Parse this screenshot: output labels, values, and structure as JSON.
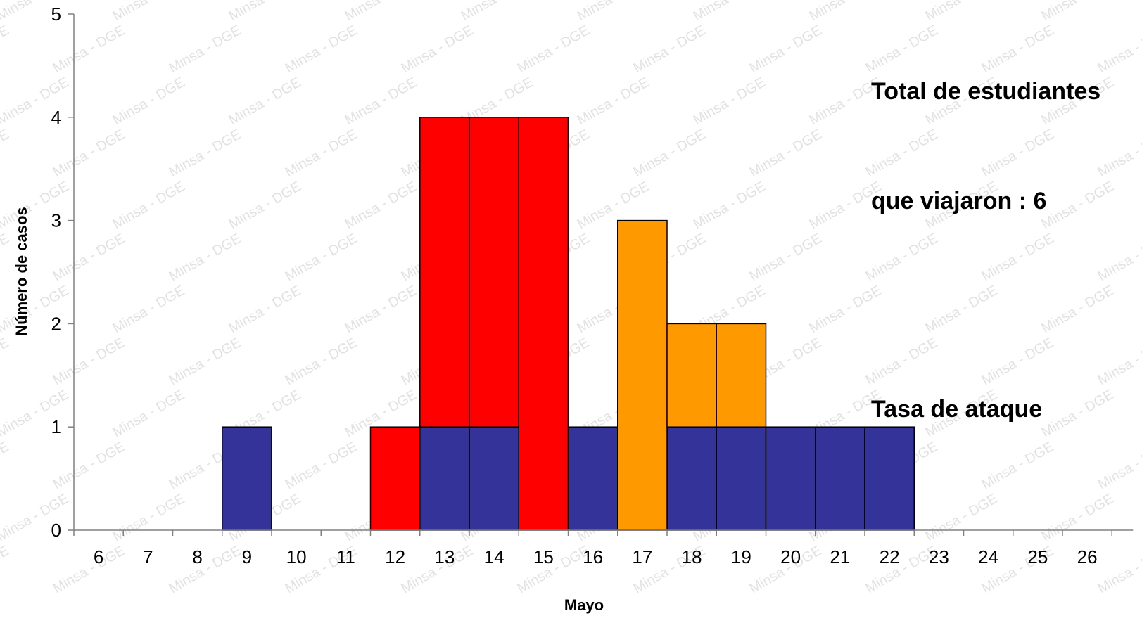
{
  "chart_data": {
    "type": "bar",
    "stacked": true,
    "title": "",
    "xlabel": "Mayo",
    "ylabel": "Número de casos",
    "ylim": [
      0,
      5
    ],
    "yticks": [
      0,
      1,
      2,
      3,
      4,
      5
    ],
    "categories": [
      "6",
      "7",
      "8",
      "9",
      "10",
      "11",
      "12",
      "13",
      "14",
      "15",
      "16",
      "17",
      "18",
      "19",
      "20",
      "21",
      "22",
      "23",
      "24",
      "25",
      "26"
    ],
    "series": [
      {
        "color": "#333399",
        "values": [
          0,
          0,
          0,
          1,
          0,
          0,
          0,
          1,
          1,
          0,
          1,
          0,
          1,
          1,
          1,
          1,
          1,
          0,
          0,
          0,
          0
        ]
      },
      {
        "color": "#ff0000",
        "values": [
          0,
          0,
          0,
          0,
          0,
          0,
          1,
          3,
          3,
          4,
          0,
          0,
          0,
          0,
          0,
          0,
          0,
          0,
          0,
          0,
          0
        ]
      },
      {
        "color": "#ff9900",
        "values": [
          0,
          0,
          0,
          0,
          0,
          0,
          0,
          0,
          0,
          0,
          0,
          3,
          1,
          1,
          0,
          0,
          0,
          0,
          0,
          0,
          0
        ]
      }
    ],
    "legend": "none"
  },
  "side_text": {
    "line1": "Total de estudiantes",
    "line2": "que viajaron : 6",
    "line3": "Tasa de ataque"
  },
  "watermark": "Minsa - DGE"
}
